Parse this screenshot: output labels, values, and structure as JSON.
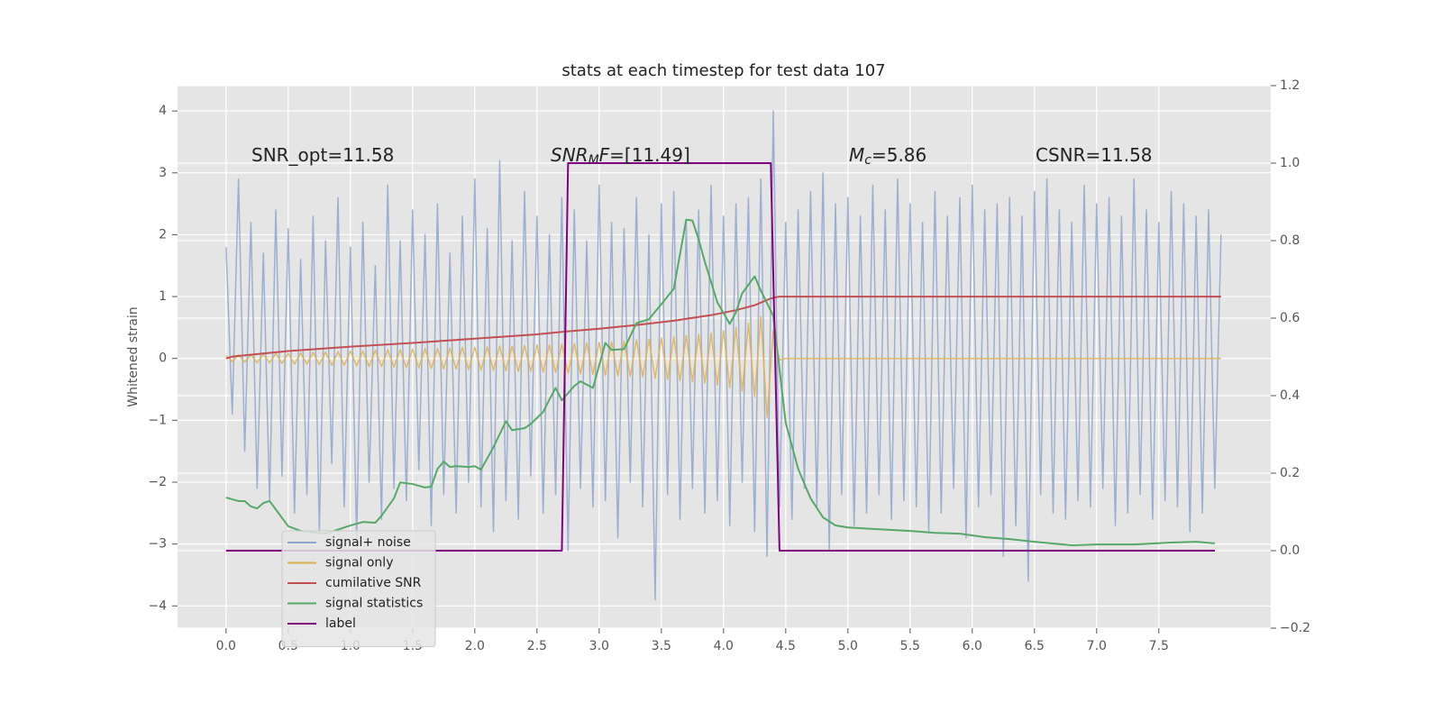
{
  "chart_data": {
    "type": "line",
    "title": "stats at each timestep for test data 107",
    "y_label": "Whitened strain",
    "background": "#e5e5e5",
    "grid": true,
    "legend": "lower left",
    "xlim": [
      -0.39,
      8.4
    ],
    "ylim": [
      -4.36,
      4.41
    ],
    "y2lim": [
      -0.2,
      1.2
    ],
    "xticks": [
      {
        "value": 0,
        "label": "0.0"
      },
      {
        "value": 0.5,
        "label": "0.5"
      },
      {
        "value": 1,
        "label": "1.0"
      },
      {
        "value": 1.5,
        "label": "1.5"
      },
      {
        "value": 2,
        "label": "2.0"
      },
      {
        "value": 2.5,
        "label": "2.5"
      },
      {
        "value": 3,
        "label": "3.0"
      },
      {
        "value": 3.5,
        "label": "3.5"
      },
      {
        "value": 4,
        "label": "4.0"
      },
      {
        "value": 4.5,
        "label": "4.5"
      },
      {
        "value": 5,
        "label": "5.0"
      },
      {
        "value": 5.5,
        "label": "5.5"
      },
      {
        "value": 6,
        "label": "6.0"
      },
      {
        "value": 6.5,
        "label": "6.5"
      },
      {
        "value": 7,
        "label": "7.0"
      },
      {
        "value": 7.5,
        "label": "7.5"
      }
    ],
    "yticks": [
      {
        "value": -4,
        "label": "−4"
      },
      {
        "value": -3,
        "label": "−3"
      },
      {
        "value": -2,
        "label": "−2"
      },
      {
        "value": -1,
        "label": "−1"
      },
      0,
      1,
      2,
      3,
      4
    ],
    "y2ticks": [
      {
        "value": -0.2,
        "label": "−0.2"
      },
      {
        "value": 0,
        "label": "0.0"
      },
      {
        "value": 0.2,
        "label": "0.2"
      },
      {
        "value": 0.4,
        "label": "0.4"
      },
      {
        "value": 0.6,
        "label": "0.6"
      },
      {
        "value": 0.8,
        "label": "0.8"
      },
      {
        "value": 1,
        "label": "1.0"
      },
      {
        "value": 1.2,
        "label": "1.2"
      }
    ],
    "annotations": [
      {
        "parts": [
          {
            "text": "SNR_opt=11.58"
          }
        ]
      },
      {
        "parts": [
          {
            "text": "SNR",
            "italic": true
          },
          {
            "text": "M",
            "italic": true,
            "sub": true
          },
          {
            "text": "F",
            "italic": true
          },
          {
            "text": "=[11.49]"
          }
        ]
      },
      {
        "parts": [
          {
            "text": "M",
            "italic": true
          },
          {
            "text": "c",
            "italic": true,
            "sub": true
          },
          {
            "text": "=5.86"
          }
        ]
      },
      {
        "parts": [
          {
            "text": "CSNR=11.58"
          }
        ]
      }
    ],
    "x": [
      0,
      0.05,
      0.1,
      0.15,
      0.2,
      0.25,
      0.3,
      0.35,
      0.4,
      0.45,
      0.5,
      0.55,
      0.6,
      0.65,
      0.7,
      0.75,
      0.8,
      0.85,
      0.9,
      0.95,
      1,
      1.05,
      1.1,
      1.15,
      1.2,
      1.25,
      1.3,
      1.35,
      1.4,
      1.45,
      1.5,
      1.55,
      1.6,
      1.65,
      1.7,
      1.75,
      1.8,
      1.85,
      1.9,
      1.95,
      2,
      2.05,
      2.1,
      2.15,
      2.2,
      2.25,
      2.3,
      2.35,
      2.4,
      2.45,
      2.5,
      2.55,
      2.6,
      2.65,
      2.7,
      2.75,
      2.8,
      2.85,
      2.9,
      2.95,
      3,
      3.05,
      3.1,
      3.15,
      3.2,
      3.25,
      3.3,
      3.35,
      3.4,
      3.45,
      3.5,
      3.55,
      3.6,
      3.65,
      3.7,
      3.75,
      3.8,
      3.85,
      3.9,
      3.95,
      4,
      4.05,
      4.1,
      4.15,
      4.2,
      4.25,
      4.3,
      4.35,
      4.4,
      4.45,
      4.5,
      4.55,
      4.6,
      4.65,
      4.7,
      4.75,
      4.8,
      4.85,
      4.9,
      4.95,
      5,
      5.05,
      5.1,
      5.15,
      5.2,
      5.25,
      5.3,
      5.35,
      5.4,
      5.45,
      5.5,
      5.55,
      5.6,
      5.65,
      5.7,
      5.75,
      5.8,
      5.85,
      5.9,
      5.95,
      6,
      6.05,
      6.1,
      6.15,
      6.2,
      6.25,
      6.3,
      6.35,
      6.4,
      6.45,
      6.5,
      6.55,
      6.6,
      6.65,
      6.7,
      6.75,
      6.8,
      6.85,
      6.9,
      6.95,
      7,
      7.05,
      7.1,
      7.15,
      7.2,
      7.25,
      7.3,
      7.35,
      7.4,
      7.45,
      7.5,
      7.55,
      7.6,
      7.65,
      7.7,
      7.75,
      7.8,
      7.85,
      7.9,
      7.95,
      8
    ],
    "series": [
      {
        "name": "signal+ noise",
        "color": "#8fa6cc",
        "values": [
          1.8,
          -0.9,
          2.9,
          -1.5,
          2.2,
          -2.1,
          1.7,
          -2.3,
          2.4,
          -1.9,
          2.1,
          -2.5,
          1.6,
          -2.2,
          2.3,
          -2.8,
          1.9,
          -1.7,
          2.6,
          -2.4,
          1.8,
          -2.9,
          2.2,
          -2.0,
          1.5,
          -2.6,
          2.8,
          -2.1,
          1.9,
          -2.3,
          2.4,
          -1.8,
          2.0,
          -2.7,
          2.5,
          -2.2,
          1.7,
          -2.5,
          2.3,
          -2.0,
          2.9,
          -2.4,
          2.1,
          -2.8,
          3.2,
          -2.3,
          1.9,
          -2.6,
          2.7,
          -1.9,
          2.3,
          -2.5,
          2.0,
          -2.2,
          2.6,
          -3.1,
          2.4,
          -2.1,
          1.9,
          -2.4,
          2.8,
          -2.3,
          2.2,
          -2.9,
          2.1,
          -2.0,
          2.6,
          -2.4,
          2.0,
          -3.9,
          2.5,
          -2.2,
          2.7,
          -2.6,
          2.2,
          -2.1,
          2.4,
          -2.5,
          2.8,
          -2.3,
          2.3,
          -2.7,
          2.5,
          -2.0,
          2.6,
          -2.8,
          2.9,
          -3.2,
          4.0,
          -2.4,
          2.2,
          -2.6,
          2.4,
          -2.1,
          2.7,
          -2.4,
          3.0,
          -3.1,
          2.5,
          -2.2,
          2.6,
          -2.7,
          2.3,
          -2.5,
          2.8,
          -2.2,
          2.4,
          -2.6,
          2.9,
          -2.3,
          2.5,
          -2.4,
          2.2,
          -2.8,
          2.7,
          -2.5,
          2.3,
          -2.1,
          2.6,
          -2.9,
          2.8,
          -2.4,
          2.4,
          -2.2,
          2.5,
          -3.2,
          2.6,
          -2.7,
          2.3,
          -3.6,
          2.7,
          -2.2,
          2.9,
          -2.5,
          2.4,
          -2.6,
          2.2,
          -2.3,
          2.8,
          -2.4,
          2.5,
          -2.1,
          2.6,
          -2.7,
          2.3,
          -2.5,
          2.9,
          -2.2,
          2.4,
          -2.6,
          2.2,
          -2.3,
          2.7,
          -2.4,
          2.5,
          -2.8,
          2.3,
          -2.5,
          2.4,
          -2.1,
          2.0
        ]
      },
      {
        "name": "signal only",
        "color": "#e0b04c",
        "values": [
          0.05,
          -0.05,
          0.06,
          -0.06,
          0.06,
          -0.07,
          0.07,
          -0.07,
          0.08,
          -0.08,
          0.08,
          -0.09,
          0.09,
          -0.09,
          0.1,
          -0.1,
          0.1,
          -0.11,
          0.11,
          -0.11,
          0.12,
          -0.12,
          0.12,
          -0.13,
          0.13,
          -0.13,
          0.14,
          -0.14,
          0.14,
          -0.15,
          0.15,
          -0.15,
          0.16,
          -0.16,
          0.16,
          -0.17,
          0.17,
          -0.17,
          0.18,
          -0.18,
          0.18,
          -0.19,
          0.19,
          -0.19,
          0.2,
          -0.2,
          0.2,
          -0.21,
          0.21,
          -0.21,
          0.22,
          -0.22,
          0.22,
          -0.23,
          0.23,
          -0.24,
          0.24,
          -0.25,
          0.25,
          -0.26,
          0.26,
          -0.27,
          0.27,
          -0.28,
          0.28,
          -0.29,
          0.3,
          -0.3,
          0.31,
          -0.32,
          0.33,
          -0.34,
          0.35,
          -0.36,
          0.37,
          -0.38,
          0.39,
          -0.4,
          0.41,
          -0.43,
          0.45,
          -0.47,
          0.5,
          -0.53,
          0.57,
          -0.62,
          0.68,
          -0.95,
          0.45,
          -0.02,
          0,
          0,
          0,
          0,
          0,
          0,
          0,
          0,
          0,
          0,
          0,
          0,
          0,
          0,
          0,
          0,
          0,
          0,
          0,
          0,
          0,
          0,
          0,
          0,
          0,
          0,
          0,
          0,
          0,
          0,
          0,
          0,
          0,
          0,
          0,
          0,
          0,
          0,
          0,
          0,
          0,
          0,
          0,
          0,
          0,
          0,
          0,
          0,
          0,
          0,
          0,
          0,
          0,
          0,
          0,
          0,
          0,
          0,
          0,
          0,
          0,
          0,
          0,
          0,
          0,
          0,
          0,
          0,
          0,
          0,
          0
        ]
      },
      {
        "name": "cumilative SNR",
        "color": "#c44e52",
        "x": [
          0,
          0.05,
          0.5,
          1,
          1.5,
          2,
          2.5,
          2.7,
          3,
          3.3,
          3.6,
          3.9,
          4.1,
          4.25,
          4.38,
          4.45,
          8
        ],
        "values": [
          0,
          0.03,
          0.12,
          0.19,
          0.25,
          0.32,
          0.39,
          0.43,
          0.48,
          0.54,
          0.61,
          0.7,
          0.78,
          0.86,
          0.97,
          1,
          1
        ]
      },
      {
        "name": "signal statistics",
        "color": "#55a868",
        "axis": "y2",
        "x": [
          0,
          0.1,
          0.15,
          0.2,
          0.25,
          0.3,
          0.35,
          0.5,
          0.6,
          0.8,
          1,
          1.1,
          1.2,
          1.25,
          1.35,
          1.4,
          1.5,
          1.6,
          1.65,
          1.7,
          1.75,
          1.8,
          1.85,
          1.95,
          2,
          2.05,
          2.15,
          2.25,
          2.3,
          2.4,
          2.45,
          2.55,
          2.6,
          2.65,
          2.7,
          2.8,
          2.85,
          2.95,
          3.05,
          3.1,
          3.2,
          3.3,
          3.4,
          3.5,
          3.6,
          3.7,
          3.75,
          3.8,
          3.85,
          3.95,
          4.05,
          4.1,
          4.15,
          4.25,
          4.3,
          4.4,
          4.5,
          4.6,
          4.7,
          4.8,
          4.9,
          5,
          5.2,
          5.5,
          5.7,
          5.9,
          6.1,
          6.3,
          6.5,
          6.8,
          7,
          7.3,
          7.6,
          7.8,
          7.95
        ],
        "values": [
          0.137,
          0.128,
          0.128,
          0.114,
          0.109,
          0.123,
          0.128,
          0.063,
          0.051,
          0.044,
          0.065,
          0.074,
          0.072,
          0.09,
          0.135,
          0.176,
          0.172,
          0.163,
          0.165,
          0.211,
          0.23,
          0.216,
          0.218,
          0.216,
          0.218,
          0.209,
          0.267,
          0.334,
          0.311,
          0.316,
          0.327,
          0.358,
          0.39,
          0.42,
          0.388,
          0.425,
          0.437,
          0.42,
          0.536,
          0.518,
          0.52,
          0.587,
          0.597,
          0.636,
          0.676,
          0.854,
          0.852,
          0.803,
          0.745,
          0.641,
          0.585,
          0.615,
          0.664,
          0.708,
          0.671,
          0.606,
          0.33,
          0.211,
          0.135,
          0.086,
          0.065,
          0.06,
          0.056,
          0.051,
          0.046,
          0.044,
          0.035,
          0.03,
          0.023,
          0.014,
          0.016,
          0.016,
          0.021,
          0.023,
          0.019
        ]
      },
      {
        "name": "label",
        "color": "#800080",
        "axis": "y2",
        "x": [
          0,
          2.7,
          2.75,
          4.38,
          4.45,
          7.95
        ],
        "values": [
          0,
          0,
          1,
          1,
          0,
          0
        ]
      }
    ]
  }
}
